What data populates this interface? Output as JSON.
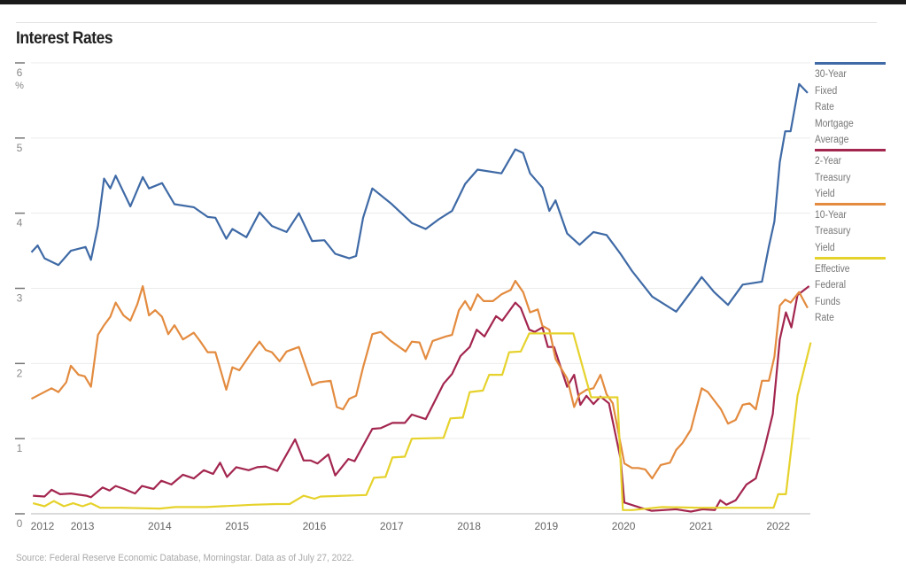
{
  "chart_data": {
    "type": "line",
    "title": "Interest Rates",
    "ylabel": "%",
    "xlabel": "",
    "ylim": [
      0,
      6
    ],
    "xlim": [
      2012.3,
      2022.45
    ],
    "yticks": [
      0,
      1,
      2,
      3,
      4,
      5,
      6
    ],
    "xticks": [
      2012,
      2013,
      2014,
      2015,
      2016,
      2017,
      2018,
      2019,
      2020,
      2021,
      2022
    ],
    "grid": true,
    "legend_position": "right",
    "source": "Source: Federal Reserve Economic Database, Morningstar. Data as of July 27, 2022.",
    "series": [
      {
        "name": "30-Year Fixed Rate Mortgage Average",
        "color": "#3f6aa6",
        "x": [
          2012.34,
          2012.42,
          2012.51,
          2012.69,
          2012.85,
          2013.04,
          2013.11,
          2013.2,
          2013.28,
          2013.36,
          2013.43,
          2013.62,
          2013.78,
          2013.86,
          2014.03,
          2014.19,
          2014.44,
          2014.62,
          2014.72,
          2014.86,
          2014.94,
          2015.12,
          2015.29,
          2015.45,
          2015.64,
          2015.8,
          2015.97,
          2016.13,
          2016.27,
          2016.45,
          2016.54,
          2016.63,
          2016.75,
          2016.99,
          2017.26,
          2017.44,
          2017.61,
          2017.78,
          2017.95,
          2018.11,
          2018.42,
          2018.6,
          2018.7,
          2018.79,
          2018.95,
          2019.04,
          2019.12,
          2019.27,
          2019.43,
          2019.61,
          2019.78,
          2019.96,
          2020.11,
          2020.37,
          2020.68,
          2020.87,
          2021.01,
          2021.17,
          2021.35,
          2021.54,
          2021.79,
          2021.88,
          2021.95,
          2022.02,
          2022.09,
          2022.16,
          2022.27,
          2022.38
        ],
        "values": [
          3.48,
          3.57,
          3.4,
          3.31,
          3.5,
          3.55,
          3.38,
          3.83,
          4.46,
          4.33,
          4.5,
          4.09,
          4.48,
          4.33,
          4.4,
          4.12,
          4.08,
          3.95,
          3.94,
          3.66,
          3.79,
          3.68,
          4.01,
          3.83,
          3.75,
          4.0,
          3.63,
          3.64,
          3.46,
          3.4,
          3.43,
          3.94,
          4.33,
          4.13,
          3.87,
          3.79,
          3.92,
          4.03,
          4.39,
          4.58,
          4.53,
          4.85,
          4.8,
          4.53,
          4.34,
          4.03,
          4.17,
          3.73,
          3.58,
          3.75,
          3.71,
          3.46,
          3.23,
          2.89,
          2.69,
          2.95,
          3.15,
          2.95,
          2.78,
          3.05,
          3.09,
          3.56,
          3.89,
          4.68,
          5.09,
          5.09,
          5.72,
          5.6
        ]
      },
      {
        "name": "2-Year Treasury Yield",
        "color": "#a3264f",
        "x": [
          2012.36,
          2012.51,
          2012.6,
          2012.71,
          2012.85,
          2013.05,
          2013.11,
          2013.26,
          2013.35,
          2013.43,
          2013.54,
          2013.68,
          2013.77,
          2013.92,
          2014.02,
          2014.15,
          2014.3,
          2014.44,
          2014.57,
          2014.69,
          2014.78,
          2014.87,
          2014.99,
          2015.15,
          2015.26,
          2015.37,
          2015.52,
          2015.75,
          2015.86,
          2015.95,
          2016.04,
          2016.18,
          2016.27,
          2016.44,
          2016.52,
          2016.75,
          2016.86,
          2017.01,
          2017.17,
          2017.26,
          2017.44,
          2017.67,
          2017.78,
          2017.89,
          2018.01,
          2018.1,
          2018.2,
          2018.35,
          2018.43,
          2018.6,
          2018.67,
          2018.78,
          2018.85,
          2018.95,
          2019.02,
          2019.1,
          2019.27,
          2019.36,
          2019.44,
          2019.52,
          2019.61,
          2019.7,
          2019.81,
          2019.96,
          2020.01,
          2020.22,
          2020.36,
          2020.68,
          2020.87,
          2021.02,
          2021.18,
          2021.25,
          2021.33,
          2021.45,
          2021.59,
          2021.71,
          2021.82,
          2021.93,
          2022.02,
          2022.1,
          2022.17,
          2022.25,
          2022.4
        ],
        "values": [
          0.24,
          0.23,
          0.32,
          0.26,
          0.27,
          0.24,
          0.22,
          0.35,
          0.31,
          0.37,
          0.33,
          0.27,
          0.37,
          0.33,
          0.44,
          0.39,
          0.52,
          0.47,
          0.58,
          0.53,
          0.68,
          0.49,
          0.62,
          0.58,
          0.62,
          0.63,
          0.57,
          0.99,
          0.71,
          0.71,
          0.67,
          0.79,
          0.51,
          0.73,
          0.7,
          1.13,
          1.14,
          1.21,
          1.21,
          1.32,
          1.26,
          1.73,
          1.86,
          2.1,
          2.22,
          2.45,
          2.36,
          2.63,
          2.57,
          2.81,
          2.74,
          2.45,
          2.42,
          2.48,
          2.22,
          2.22,
          1.69,
          1.85,
          1.45,
          1.57,
          1.46,
          1.56,
          1.47,
          0.74,
          0.15,
          0.08,
          0.04,
          0.06,
          0.03,
          0.06,
          0.05,
          0.18,
          0.12,
          0.18,
          0.39,
          0.47,
          0.86,
          1.33,
          2.32,
          2.68,
          2.48,
          2.91,
          3.03
        ]
      },
      {
        "name": "10-Year Treasury Yield",
        "color": "#e38b3f",
        "x": [
          2012.34,
          2012.6,
          2012.69,
          2012.79,
          2012.85,
          2012.95,
          2013.03,
          2013.11,
          2013.2,
          2013.28,
          2013.36,
          2013.43,
          2013.53,
          2013.62,
          2013.71,
          2013.78,
          2013.86,
          2013.94,
          2014.03,
          2014.11,
          2014.19,
          2014.3,
          2014.44,
          2014.52,
          2014.62,
          2014.72,
          2014.86,
          2014.94,
          2015.03,
          2015.21,
          2015.29,
          2015.37,
          2015.45,
          2015.55,
          2015.64,
          2015.8,
          2015.89,
          2015.97,
          2016.06,
          2016.21,
          2016.29,
          2016.37,
          2016.45,
          2016.54,
          2016.63,
          2016.75,
          2016.86,
          2016.99,
          2017.18,
          2017.26,
          2017.36,
          2017.44,
          2017.53,
          2017.7,
          2017.78,
          2017.87,
          2017.95,
          2018.02,
          2018.11,
          2018.19,
          2018.31,
          2018.42,
          2018.54,
          2018.6,
          2018.7,
          2018.79,
          2018.89,
          2018.95,
          2019.04,
          2019.12,
          2019.27,
          2019.36,
          2019.43,
          2019.52,
          2019.61,
          2019.7,
          2019.78,
          2019.86,
          2019.96,
          2020.01,
          2020.11,
          2020.19,
          2020.28,
          2020.37,
          2020.48,
          2020.6,
          2020.68,
          2020.76,
          2020.87,
          2021.01,
          2021.09,
          2021.17,
          2021.26,
          2021.35,
          2021.45,
          2021.54,
          2021.63,
          2021.71,
          2021.79,
          2021.88,
          2021.95,
          2022.02,
          2022.09,
          2022.16,
          2022.27,
          2022.38
        ],
        "values": [
          1.53,
          1.67,
          1.62,
          1.75,
          1.97,
          1.85,
          1.83,
          1.69,
          2.38,
          2.51,
          2.62,
          2.81,
          2.64,
          2.57,
          2.79,
          3.03,
          2.64,
          2.71,
          2.62,
          2.39,
          2.51,
          2.32,
          2.41,
          2.3,
          2.15,
          2.15,
          1.65,
          1.95,
          1.91,
          2.18,
          2.29,
          2.18,
          2.15,
          2.03,
          2.16,
          2.22,
          1.95,
          1.71,
          1.75,
          1.77,
          1.42,
          1.39,
          1.53,
          1.57,
          1.95,
          2.39,
          2.42,
          2.3,
          2.16,
          2.29,
          2.28,
          2.06,
          2.3,
          2.36,
          2.38,
          2.71,
          2.83,
          2.71,
          2.92,
          2.83,
          2.83,
          2.92,
          2.98,
          3.1,
          2.95,
          2.68,
          2.72,
          2.5,
          2.45,
          2.06,
          1.8,
          1.42,
          1.59,
          1.65,
          1.67,
          1.85,
          1.59,
          1.47,
          0.94,
          0.67,
          0.61,
          0.61,
          0.59,
          0.47,
          0.65,
          0.68,
          0.85,
          0.94,
          1.12,
          1.67,
          1.62,
          1.51,
          1.39,
          1.2,
          1.25,
          1.45,
          1.47,
          1.39,
          1.77,
          1.77,
          2.09,
          2.77,
          2.85,
          2.81,
          2.95,
          2.74
        ]
      },
      {
        "name": "Effective Federal Funds Rate",
        "color": "#e6d22c",
        "x": [
          2012.36,
          2012.51,
          2012.63,
          2012.76,
          2012.88,
          2013.0,
          2013.11,
          2013.23,
          2013.5,
          2014.0,
          2014.2,
          2014.6,
          2014.8,
          2015.0,
          2015.2,
          2015.5,
          2015.68,
          2015.86,
          2016.0,
          2016.08,
          2016.67,
          2016.77,
          2016.92,
          2017.01,
          2017.17,
          2017.26,
          2017.67,
          2017.76,
          2017.92,
          2018.01,
          2018.18,
          2018.26,
          2018.43,
          2018.52,
          2018.67,
          2018.78,
          2019.04,
          2019.35,
          2019.52,
          2019.58,
          2019.92,
          2019.99,
          2020.11,
          2020.5,
          2021.0,
          2021.5,
          2021.94,
          2022.0,
          2022.1,
          2022.25,
          2022.42
        ],
        "values": [
          0.14,
          0.1,
          0.17,
          0.1,
          0.14,
          0.1,
          0.14,
          0.08,
          0.08,
          0.07,
          0.09,
          0.09,
          0.1,
          0.11,
          0.12,
          0.13,
          0.13,
          0.24,
          0.2,
          0.23,
          0.25,
          0.48,
          0.49,
          0.75,
          0.76,
          1.0,
          1.01,
          1.27,
          1.28,
          1.62,
          1.64,
          1.85,
          1.85,
          2.15,
          2.16,
          2.4,
          2.4,
          2.4,
          1.77,
          1.55,
          1.55,
          0.05,
          0.05,
          0.09,
          0.08,
          0.08,
          0.08,
          0.26,
          0.26,
          1.57,
          2.28
        ]
      }
    ]
  }
}
